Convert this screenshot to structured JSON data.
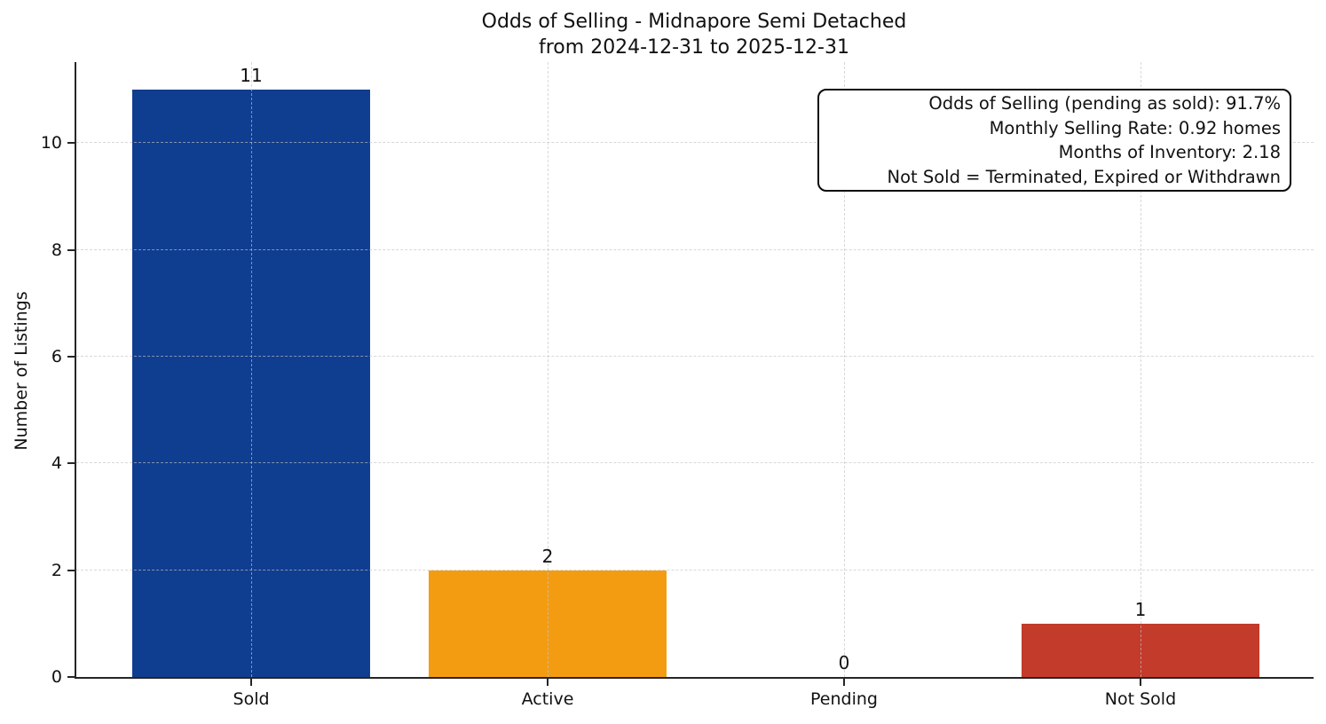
{
  "chart_data": {
    "type": "bar",
    "title": "Odds of Selling - Midnapore Semi Detached",
    "subtitle": "from 2024-12-31 to 2025-12-31",
    "categories": [
      "Sold",
      "Active",
      "Pending",
      "Not Sold"
    ],
    "values": [
      11,
      2,
      0,
      1
    ],
    "bar_labels": [
      "11",
      "2",
      "0",
      "1"
    ],
    "bar_colors": [
      "#0f3d90",
      "#f39c12",
      null,
      "#c23b2b"
    ],
    "ylabel": "Number of Listings",
    "xlabel": "",
    "yticks": [
      0,
      2,
      4,
      6,
      8,
      10
    ],
    "ylim": [
      0,
      11.55
    ],
    "grid": "dashed light-gray, horizontal at yticks and vertical at category centers, drawn above bars",
    "legend_position": "none",
    "axis_color": "#262626",
    "background_color": "#ffffff",
    "annotation_box": {
      "position": "top-right",
      "text_align": "right",
      "border_color": "#0a0a0a",
      "background_color": "#ffffff",
      "lines": [
        "Odds of Selling (pending as sold): 91.7%",
        "Monthly Selling Rate: 0.92 homes",
        "Months of Inventory: 2.18",
        "Not Sold = Terminated, Expired or Withdrawn"
      ]
    }
  }
}
